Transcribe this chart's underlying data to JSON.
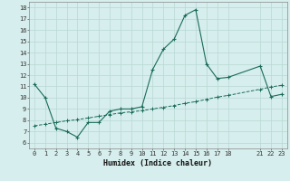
{
  "xlabel": "Humidex (Indice chaleur)",
  "bg_color": "#d6eeed",
  "grid_color": "#b8d8d4",
  "line_color": "#1a6b5a",
  "xlim": [
    -0.5,
    23.5
  ],
  "ylim": [
    5.5,
    18.5
  ],
  "xtick_vals": [
    0,
    1,
    2,
    3,
    4,
    5,
    6,
    7,
    8,
    9,
    10,
    11,
    12,
    13,
    14,
    15,
    16,
    17,
    18,
    21,
    22,
    23
  ],
  "xtick_labels": [
    "0",
    "1",
    "2",
    "3",
    "4",
    "5",
    "6",
    "7",
    "8",
    "9",
    "10",
    "11",
    "12",
    "13",
    "14",
    "15",
    "16",
    "17",
    "18",
    "21",
    "22",
    "23"
  ],
  "ytick_vals": [
    6,
    7,
    8,
    9,
    10,
    11,
    12,
    13,
    14,
    15,
    16,
    17,
    18
  ],
  "ytick_labels": [
    "6",
    "7",
    "8",
    "9",
    "10",
    "11",
    "12",
    "13",
    "14",
    "15",
    "16",
    "17",
    "18"
  ],
  "line1_x": [
    0,
    1,
    2,
    3,
    4,
    5,
    6,
    7,
    8,
    9,
    10,
    11,
    12,
    13,
    14,
    15,
    16,
    17,
    18,
    21,
    22,
    23
  ],
  "line1_y": [
    11.2,
    10.0,
    7.3,
    7.0,
    6.5,
    7.8,
    7.8,
    8.8,
    9.0,
    9.0,
    9.2,
    12.5,
    14.3,
    15.2,
    17.3,
    17.8,
    13.0,
    11.7,
    11.8,
    12.8,
    10.1,
    10.3
  ],
  "line2_x": [
    0,
    1,
    2,
    3,
    4,
    5,
    6,
    7,
    8,
    9,
    10,
    11,
    12,
    13,
    14,
    15,
    16,
    17,
    18,
    21,
    22,
    23
  ],
  "line2_y": [
    7.5,
    7.65,
    7.8,
    7.95,
    8.05,
    8.2,
    8.35,
    8.5,
    8.65,
    8.75,
    8.85,
    9.0,
    9.15,
    9.3,
    9.5,
    9.65,
    9.85,
    10.05,
    10.2,
    10.75,
    10.95,
    11.1
  ],
  "tick_fontsize": 5.0,
  "xlabel_fontsize": 6.0
}
